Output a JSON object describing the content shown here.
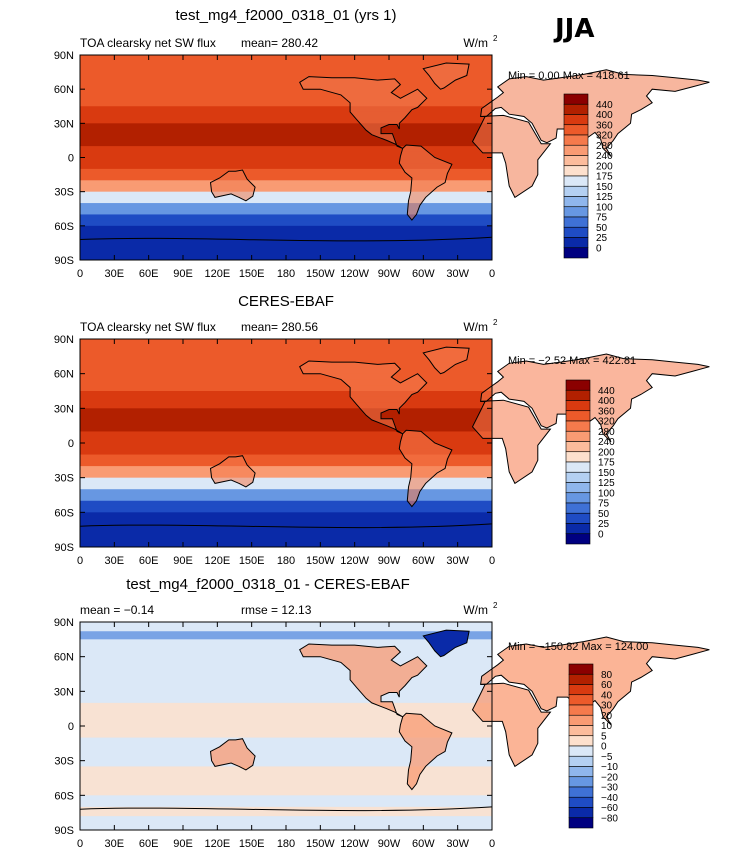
{
  "season": "JJA",
  "chart_data": [
    {
      "type": "heatmap",
      "title": "test_mg4_f2000_0318_01 (yrs 1)",
      "left_label": "TOA clearsky net SW flux",
      "center_label": "mean= 280.42",
      "units_base": "W/m",
      "units_exp": "2",
      "minmax": "Min =    0.00 Max = 418.61",
      "min": 0.0,
      "max": 418.61,
      "mean": 280.42,
      "xticks": [
        "0",
        "30E",
        "60E",
        "90E",
        "120E",
        "150E",
        "180",
        "150W",
        "120W",
        "90W",
        "60W",
        "30W",
        "0"
      ],
      "yticks": [
        "90N",
        "60N",
        "30N",
        "0",
        "30S",
        "60S",
        "90S"
      ],
      "xlim": [
        0,
        360
      ],
      "ylim": [
        -90,
        90
      ],
      "colorbar": [
        "440",
        "400",
        "360",
        "320",
        "280",
        "240",
        "200",
        "175",
        "150",
        "125",
        "100",
        "75",
        "50",
        "25",
        "0"
      ],
      "colors": [
        "#8b0000",
        "#b22000",
        "#d93a10",
        "#ec5a2a",
        "#f57a4c",
        "#f99b73",
        "#fcbc9c",
        "#fde0cd",
        "#dbe8f7",
        "#b4d0f2",
        "#8fb6ec",
        "#6797e2",
        "#3f71d6",
        "#1f4cc4",
        "#0a2aa8",
        "#000080"
      ]
    },
    {
      "type": "heatmap",
      "title": "CERES-EBAF",
      "left_label": "TOA clearsky net SW flux",
      "center_label": "mean= 280.56",
      "units_base": "W/m",
      "units_exp": "2",
      "minmax": "Min =  −2.52 Max = 422.81",
      "min": -2.52,
      "max": 422.81,
      "mean": 280.56,
      "xticks": [
        "0",
        "30E",
        "60E",
        "90E",
        "120E",
        "150E",
        "180",
        "150W",
        "120W",
        "90W",
        "60W",
        "30W",
        "0"
      ],
      "yticks": [
        "90N",
        "60N",
        "30N",
        "0",
        "30S",
        "60S",
        "90S"
      ],
      "xlim": [
        0,
        360
      ],
      "ylim": [
        -90,
        90
      ],
      "colorbar": [
        "440",
        "400",
        "360",
        "320",
        "280",
        "240",
        "200",
        "175",
        "150",
        "125",
        "100",
        "75",
        "50",
        "25",
        "0"
      ],
      "colors": [
        "#8b0000",
        "#b22000",
        "#d93a10",
        "#ec5a2a",
        "#f57a4c",
        "#f99b73",
        "#fcbc9c",
        "#fde0cd",
        "#dbe8f7",
        "#b4d0f2",
        "#8fb6ec",
        "#6797e2",
        "#3f71d6",
        "#1f4cc4",
        "#0a2aa8",
        "#000080"
      ]
    },
    {
      "type": "heatmap",
      "title": "test_mg4_f2000_0318_01 - CERES-EBAF",
      "left_label": "mean =   −0.14",
      "center_label": "rmse =   12.13",
      "units_base": "W/m",
      "units_exp": "2",
      "minmax": "Min = −150.82 Max = 124.00",
      "min": -150.82,
      "max": 124.0,
      "mean": -0.14,
      "rmse": 12.13,
      "xticks": [
        "0",
        "30E",
        "60E",
        "90E",
        "120E",
        "150E",
        "180",
        "150W",
        "120W",
        "90W",
        "60W",
        "30W",
        "0"
      ],
      "yticks": [
        "90N",
        "60N",
        "30N",
        "0",
        "30S",
        "60S",
        "90S"
      ],
      "xlim": [
        0,
        360
      ],
      "ylim": [
        -90,
        90
      ],
      "colorbar": [
        "80",
        "60",
        "40",
        "30",
        "20",
        "10",
        "5",
        "0",
        "−5",
        "−10",
        "−20",
        "−30",
        "−40",
        "−60",
        "−80"
      ],
      "colors": [
        "#8b0000",
        "#b22000",
        "#d93a10",
        "#ec5a2a",
        "#f57a4c",
        "#f99b73",
        "#fcbc9c",
        "#fde0cd",
        "#dbe8f7",
        "#b4d0f2",
        "#8fb6ec",
        "#6797e2",
        "#3f71d6",
        "#1f4cc4",
        "#0a2aa8",
        "#000080"
      ]
    }
  ]
}
